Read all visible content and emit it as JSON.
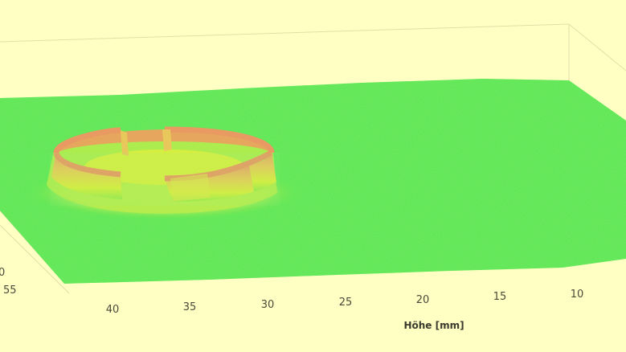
{
  "chart_data": {
    "type": "surface",
    "description_labels": {
      "xlabel": "Höhe [mm]",
      "ylabel": ""
    },
    "x_ticks": [
      "40",
      "35",
      "30",
      "25",
      "20",
      "15",
      "10"
    ],
    "y_ticks": [
      "55",
      "0"
    ],
    "colors": {
      "background": "#ffffc4",
      "surface_base": "#52e64a",
      "surface_mid": "#d8f03c",
      "surface_peak": "#e8a060",
      "box_lines": "#e2dea8"
    },
    "grid": false
  }
}
